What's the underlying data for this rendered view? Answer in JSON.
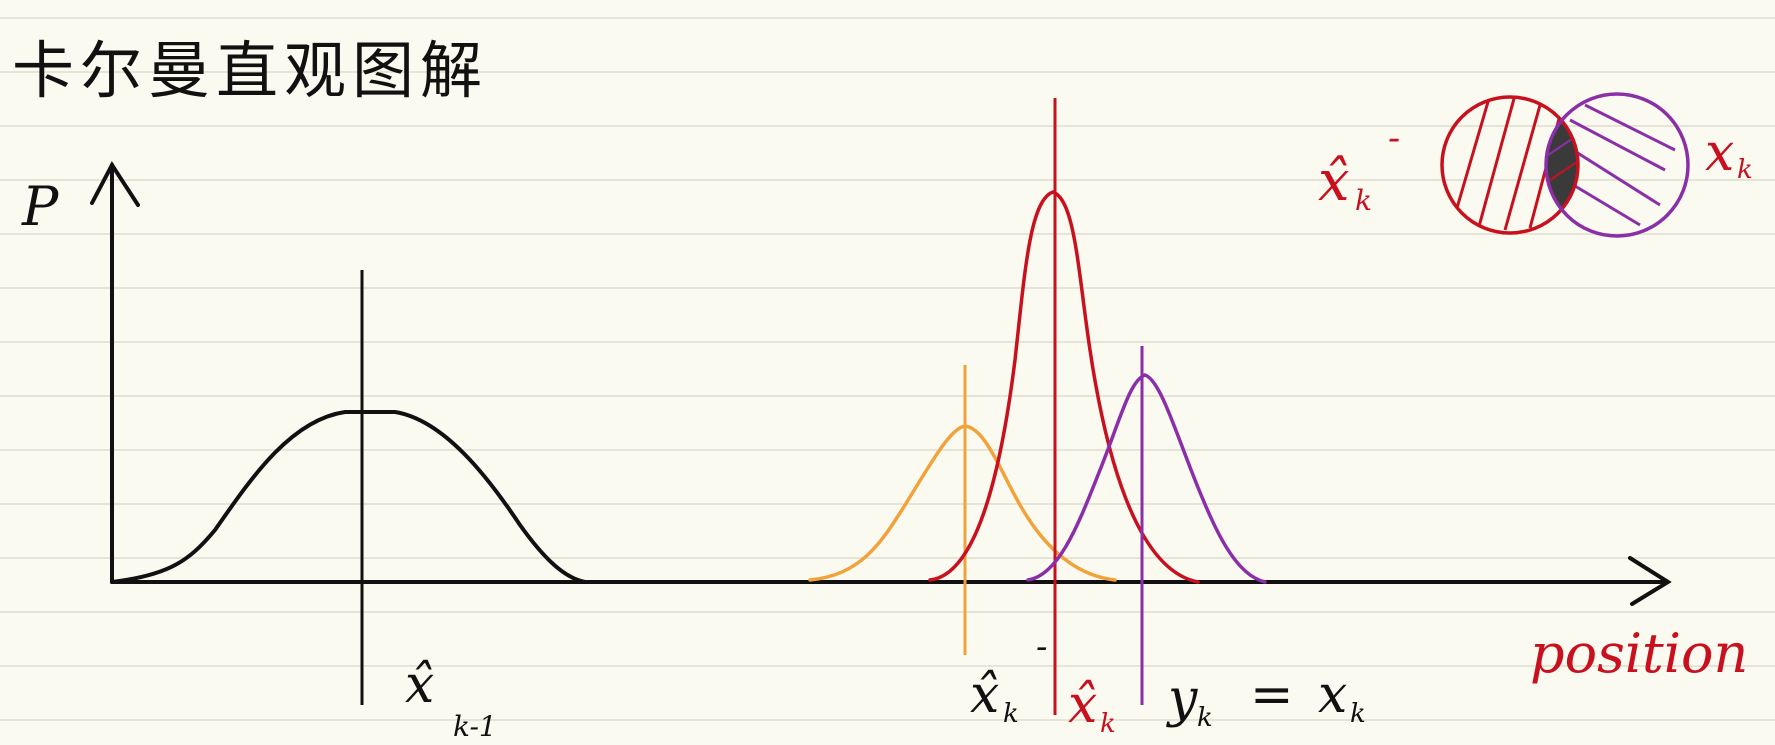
{
  "title": "卡尔曼直观图解",
  "y_axis_label": "P",
  "x_axis_label": "position",
  "labels": {
    "prev_estimate": "x̂",
    "prev_estimate_sub": "k-1",
    "prior": "x̂",
    "prior_sub": "k",
    "prior_sup": "-",
    "posterior": "x̂",
    "posterior_sub": "k",
    "equation_y": "y",
    "equation_y_sub": "k",
    "equation_eq": "=",
    "equation_x": "x",
    "equation_x_sub": "k"
  },
  "inset": {
    "left_label": "x̂",
    "left_label_sub": "k",
    "left_label_sup": "-",
    "right_label": "x",
    "right_label_sub": "k"
  },
  "colors": {
    "paper": "#fbfaf1",
    "ruled_line": "#e6e4d6",
    "ink": "#111111",
    "prior": "#f2a23a",
    "posterior": "#c8101e",
    "measurement": "#8a2fa8",
    "overlap": "#222222"
  }
}
